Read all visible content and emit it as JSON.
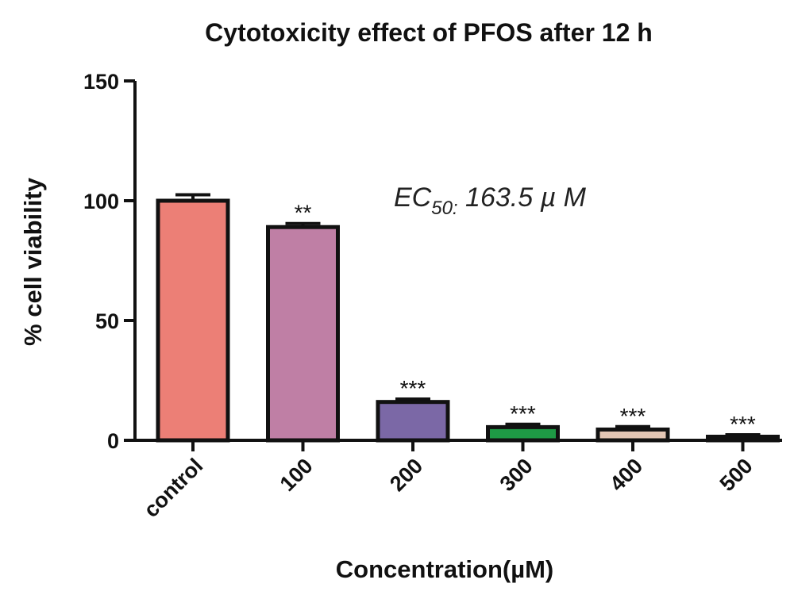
{
  "chart_data": {
    "type": "bar",
    "title": "Cytotoxicity effect of PFOS after 12 h",
    "xlabel": "Concentration(µM)",
    "ylabel": "% cell viability",
    "categories": [
      "control",
      "100",
      "200",
      "300",
      "400",
      "500"
    ],
    "values": [
      100,
      89,
      16,
      5.5,
      4.5,
      1.5
    ],
    "errors": [
      2.5,
      1.5,
      1.2,
      1.2,
      1.2,
      0.8
    ],
    "significance": [
      "",
      "**",
      "***",
      "***",
      "***",
      "***"
    ],
    "colors": [
      "#ec7f76",
      "#bf7fa5",
      "#7b68a6",
      "#1e9a45",
      "#e3c6b4",
      "#c9c9c9"
    ],
    "ylim": [
      0,
      150
    ],
    "yticks": [
      0,
      50,
      100,
      150
    ],
    "grid": false,
    "annotation": {
      "main": "EC",
      "subscript": "50:",
      "value": " 163.5 µ M"
    }
  }
}
